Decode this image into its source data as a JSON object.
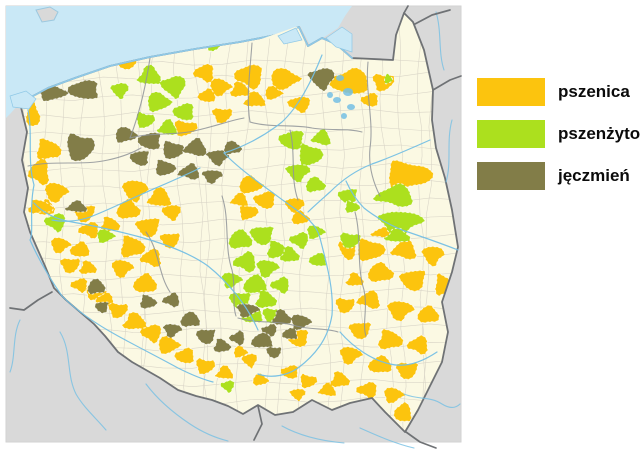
{
  "legend": {
    "items": [
      {
        "key": "p",
        "label": "pszenica",
        "color": "#FCC40E"
      },
      {
        "key": "z",
        "label": "pszenżyto",
        "color": "#ACE01E"
      },
      {
        "key": "j",
        "label": "jęczmień",
        "color": "#827D48"
      }
    ]
  },
  "map": {
    "colors": {
      "outside": "#D9D9D9",
      "poland": "#FBF9E3",
      "sea": "#C9E8F6",
      "river": "#74BFE4",
      "border_country": "#6F7275",
      "border_region": "#8F9499",
      "district": "#D8D4C6"
    },
    "patches": [
      [
        "p",
        33,
        116,
        7,
        12
      ],
      [
        "p",
        126,
        60,
        13,
        9
      ],
      [
        "p",
        48,
        150,
        13,
        11
      ],
      [
        "p",
        40,
        172,
        11,
        13
      ],
      [
        "p",
        56,
        192,
        12,
        10
      ],
      [
        "p",
        45,
        208,
        10,
        8
      ],
      [
        "p",
        84,
        213,
        11,
        9
      ],
      [
        "p",
        40,
        207,
        13,
        7
      ],
      [
        "p",
        205,
        73,
        11,
        9
      ],
      [
        "p",
        220,
        87,
        11,
        9
      ],
      [
        "p",
        207,
        96,
        9,
        7
      ],
      [
        "p",
        222,
        115,
        10,
        8
      ],
      [
        "p",
        240,
        90,
        10,
        8
      ],
      [
        "p",
        250,
        76,
        15,
        12
      ],
      [
        "p",
        284,
        79,
        15,
        11
      ],
      [
        "p",
        350,
        82,
        20,
        13
      ],
      [
        "p",
        383,
        82,
        11,
        9
      ],
      [
        "p",
        255,
        100,
        11,
        8
      ],
      [
        "p",
        300,
        104,
        12,
        8
      ],
      [
        "p",
        273,
        93,
        9,
        7
      ],
      [
        "p",
        370,
        100,
        9,
        7
      ],
      [
        "p",
        185,
        128,
        12,
        8
      ],
      [
        "p",
        160,
        198,
        12,
        10
      ],
      [
        "p",
        172,
        212,
        10,
        8
      ],
      [
        "p",
        250,
        185,
        12,
        9
      ],
      [
        "p",
        265,
        200,
        11,
        9
      ],
      [
        "p",
        248,
        212,
        10,
        8
      ],
      [
        "p",
        240,
        200,
        9,
        7
      ],
      [
        "p",
        295,
        205,
        10,
        8
      ],
      [
        "p",
        300,
        218,
        9,
        7
      ],
      [
        "p",
        348,
        248,
        9,
        12
      ],
      [
        "p",
        408,
        175,
        24,
        14
      ],
      [
        "p",
        385,
        233,
        13,
        6
      ],
      [
        "p",
        135,
        190,
        13,
        11
      ],
      [
        "p",
        128,
        210,
        12,
        10
      ],
      [
        "p",
        148,
        227,
        12,
        10
      ],
      [
        "p",
        132,
        247,
        13,
        11
      ],
      [
        "p",
        152,
        258,
        11,
        9
      ],
      [
        "p",
        122,
        268,
        11,
        9
      ],
      [
        "p",
        145,
        284,
        12,
        10
      ],
      [
        "p",
        170,
        240,
        10,
        8
      ],
      [
        "p",
        110,
        225,
        10,
        8
      ],
      [
        "p",
        90,
        230,
        11,
        8
      ],
      [
        "p",
        60,
        245,
        10,
        8
      ],
      [
        "p",
        80,
        250,
        10,
        8
      ],
      [
        "p",
        70,
        265,
        10,
        8
      ],
      [
        "p",
        88,
        268,
        9,
        7
      ],
      [
        "p",
        80,
        285,
        9,
        7
      ],
      [
        "p",
        95,
        292,
        10,
        8
      ],
      [
        "p",
        105,
        300,
        9,
        7
      ],
      [
        "p",
        118,
        310,
        10,
        8
      ],
      [
        "p",
        135,
        322,
        12,
        9
      ],
      [
        "p",
        152,
        333,
        11,
        9
      ],
      [
        "p",
        168,
        345,
        11,
        9
      ],
      [
        "p",
        185,
        356,
        10,
        8
      ],
      [
        "p",
        205,
        366,
        10,
        8
      ],
      [
        "p",
        225,
        373,
        9,
        7
      ],
      [
        "p",
        250,
        360,
        8,
        7
      ],
      [
        "p",
        240,
        352,
        7,
        6
      ],
      [
        "p",
        290,
        372,
        9,
        7
      ],
      [
        "p",
        308,
        381,
        9,
        7
      ],
      [
        "p",
        328,
        390,
        9,
        7
      ],
      [
        "p",
        298,
        394,
        8,
        6
      ],
      [
        "p",
        260,
        380,
        8,
        6
      ],
      [
        "p",
        298,
        338,
        11,
        9
      ],
      [
        "p",
        370,
        250,
        15,
        11
      ],
      [
        "p",
        405,
        250,
        13,
        10
      ],
      [
        "p",
        433,
        255,
        11,
        10
      ],
      [
        "p",
        380,
        273,
        13,
        10
      ],
      [
        "p",
        413,
        280,
        13,
        11
      ],
      [
        "p",
        443,
        285,
        9,
        11
      ],
      [
        "p",
        370,
        300,
        12,
        9
      ],
      [
        "p",
        400,
        310,
        13,
        10
      ],
      [
        "p",
        428,
        315,
        11,
        9
      ],
      [
        "p",
        360,
        330,
        11,
        9
      ],
      [
        "p",
        390,
        340,
        13,
        10
      ],
      [
        "p",
        419,
        345,
        11,
        9
      ],
      [
        "p",
        350,
        355,
        11,
        9
      ],
      [
        "p",
        380,
        365,
        12,
        9
      ],
      [
        "p",
        407,
        370,
        11,
        9
      ],
      [
        "p",
        340,
        380,
        10,
        8
      ],
      [
        "p",
        368,
        390,
        11,
        8
      ],
      [
        "p",
        393,
        395,
        10,
        8
      ],
      [
        "p",
        403,
        413,
        9,
        10
      ],
      [
        "p",
        345,
        305,
        10,
        8
      ],
      [
        "p",
        355,
        280,
        9,
        7
      ],
      [
        "z",
        56,
        222,
        11,
        9
      ],
      [
        "z",
        105,
        236,
        9,
        7
      ],
      [
        "z",
        185,
        40,
        14,
        8
      ],
      [
        "z",
        213,
        45,
        8,
        6
      ],
      [
        "z",
        150,
        76,
        12,
        10
      ],
      [
        "z",
        174,
        86,
        13,
        11
      ],
      [
        "z",
        158,
        102,
        12,
        10
      ],
      [
        "z",
        184,
        112,
        11,
        9
      ],
      [
        "z",
        145,
        120,
        10,
        8
      ],
      [
        "z",
        168,
        128,
        10,
        8
      ],
      [
        "z",
        120,
        90,
        9,
        8
      ],
      [
        "z",
        388,
        79,
        4,
        5
      ],
      [
        "z",
        292,
        140,
        13,
        10
      ],
      [
        "z",
        310,
        155,
        13,
        11
      ],
      [
        "z",
        322,
        138,
        10,
        8
      ],
      [
        "z",
        298,
        172,
        12,
        9
      ],
      [
        "z",
        315,
        185,
        10,
        8
      ],
      [
        "z",
        348,
        196,
        10,
        8
      ],
      [
        "z",
        352,
        207,
        8,
        6
      ],
      [
        "z",
        396,
        196,
        20,
        11
      ],
      [
        "z",
        400,
        222,
        22,
        12
      ],
      [
        "z",
        240,
        240,
        12,
        10
      ],
      [
        "z",
        262,
        235,
        12,
        10
      ],
      [
        "z",
        277,
        250,
        11,
        9
      ],
      [
        "z",
        246,
        262,
        12,
        10
      ],
      [
        "z",
        267,
        268,
        11,
        9
      ],
      [
        "z",
        255,
        285,
        12,
        10
      ],
      [
        "z",
        240,
        300,
        11,
        9
      ],
      [
        "z",
        266,
        300,
        11,
        9
      ],
      [
        "z",
        281,
        285,
        10,
        8
      ],
      [
        "z",
        231,
        280,
        10,
        8
      ],
      [
        "z",
        252,
        315,
        11,
        9
      ],
      [
        "z",
        272,
        315,
        10,
        8
      ],
      [
        "z",
        290,
        255,
        10,
        8
      ],
      [
        "z",
        300,
        240,
        10,
        8
      ],
      [
        "z",
        315,
        232,
        9,
        7
      ],
      [
        "z",
        318,
        260,
        9,
        7
      ],
      [
        "z",
        350,
        240,
        11,
        8
      ],
      [
        "z",
        398,
        236,
        13,
        7
      ],
      [
        "z",
        228,
        386,
        7,
        6
      ],
      [
        "j",
        52,
        93,
        14,
        8
      ],
      [
        "j",
        84,
        90,
        16,
        10
      ],
      [
        "j",
        80,
        147,
        15,
        14
      ],
      [
        "j",
        77,
        207,
        11,
        6
      ],
      [
        "j",
        322,
        78,
        13,
        11
      ],
      [
        "j",
        125,
        135,
        11,
        8
      ],
      [
        "j",
        150,
        141,
        12,
        9
      ],
      [
        "j",
        173,
        150,
        12,
        9
      ],
      [
        "j",
        196,
        148,
        12,
        9
      ],
      [
        "j",
        218,
        157,
        11,
        8
      ],
      [
        "j",
        232,
        148,
        9,
        7
      ],
      [
        "j",
        140,
        158,
        10,
        8
      ],
      [
        "j",
        165,
        168,
        11,
        8
      ],
      [
        "j",
        190,
        172,
        11,
        8
      ],
      [
        "j",
        212,
        176,
        10,
        7
      ],
      [
        "j",
        96,
        287,
        9,
        8
      ],
      [
        "j",
        102,
        307,
        7,
        6
      ],
      [
        "j",
        148,
        302,
        9,
        7
      ],
      [
        "j",
        172,
        300,
        9,
        7
      ],
      [
        "j",
        172,
        330,
        9,
        7
      ],
      [
        "j",
        190,
        320,
        10,
        8
      ],
      [
        "j",
        206,
        336,
        10,
        8
      ],
      [
        "j",
        222,
        346,
        9,
        7
      ],
      [
        "j",
        238,
        338,
        8,
        7
      ],
      [
        "j",
        247,
        310,
        11,
        7
      ],
      [
        "j",
        262,
        341,
        11,
        8
      ],
      [
        "j",
        274,
        352,
        8,
        6
      ],
      [
        "j",
        282,
        318,
        10,
        8
      ],
      [
        "j",
        270,
        330,
        8,
        6
      ],
      [
        "j",
        300,
        322,
        10,
        8
      ],
      [
        "j",
        290,
        334,
        8,
        6
      ]
    ]
  }
}
